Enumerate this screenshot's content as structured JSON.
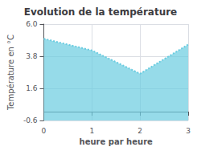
{
  "chart_data": {
    "type": "line",
    "title": "Evolution de la température",
    "xlabel": "heure par heure",
    "ylabel": "Température en °C",
    "x": [
      0,
      1,
      2,
      3
    ],
    "values": [
      5.0,
      4.2,
      2.6,
      4.6
    ],
    "color": "#6acce0",
    "line_style": "dotted",
    "xlim": [
      0,
      3
    ],
    "xticks": [
      0,
      1,
      2,
      3
    ],
    "ylim": [
      -0.6,
      6.0
    ],
    "yticks": [
      -0.6,
      1.6,
      3.8,
      {
        "value": 6.0,
        "label": "6.0"
      }
    ],
    "grid": true
  }
}
